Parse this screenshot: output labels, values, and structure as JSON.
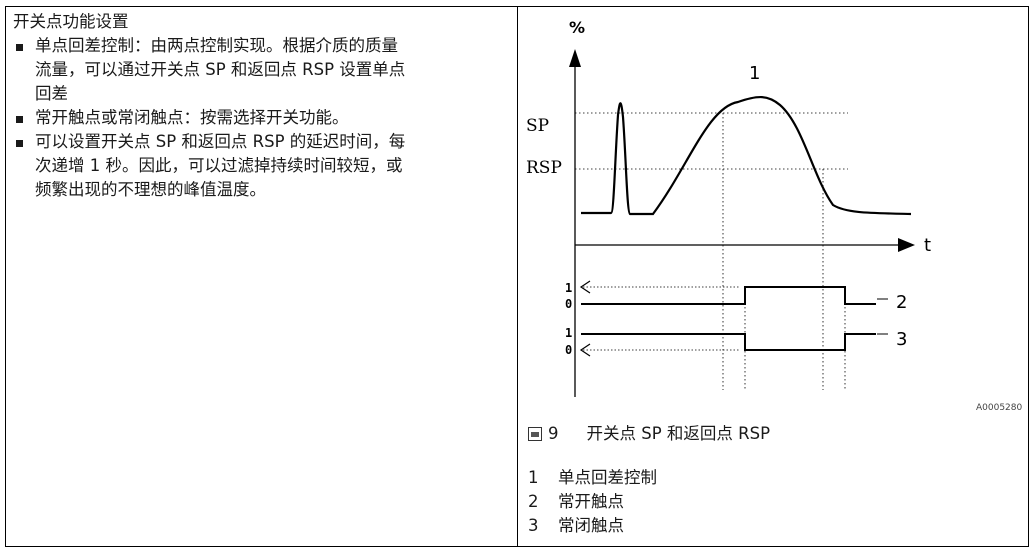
{
  "left": {
    "heading": "开关点功能设置",
    "bullets": [
      [
        "单点回差控制：由两点控制实现。根据介质的质量",
        "流量，可以通过开关点 SP 和返回点 RSP 设置单点",
        "回差"
      ],
      [
        "常开触点或常闭触点：按需选择开关功能。"
      ],
      [
        "可以设置开关点 SP 和返回点 RSP 的延迟时间，每",
        "次递增 1 秒。因此，可以过滤掉持续时间较短，或",
        "频繁出现的不理想的峰值温度。"
      ]
    ]
  },
  "figure": {
    "labels": {
      "y_axis": "%",
      "x_axis": "t",
      "sp": "SP",
      "rsp": "RSP",
      "curve_callout": "1",
      "trace_high": "1",
      "trace_low": "0",
      "trace2_callout": "2",
      "trace3_callout": "3"
    },
    "ref_code": "A0005280",
    "caption_number": "9",
    "caption_text": "开关点 SP 和返回点 RSP"
  },
  "legend": [
    {
      "key": "1",
      "text": "单点回差控制"
    },
    {
      "key": "2",
      "text": "常开触点"
    },
    {
      "key": "3",
      "text": "常闭触点"
    }
  ]
}
